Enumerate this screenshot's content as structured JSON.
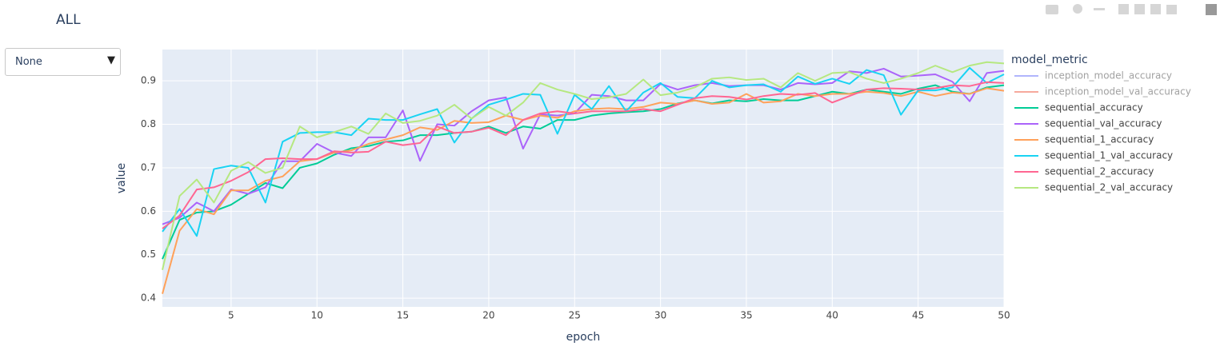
{
  "chart_data": {
    "type": "line",
    "title": "ALL",
    "dropdown": "None",
    "xlabel": "epoch",
    "ylabel": "value",
    "legend_title": "model_metric",
    "x": [
      1,
      2,
      3,
      4,
      5,
      6,
      7,
      8,
      9,
      10,
      11,
      12,
      13,
      14,
      15,
      16,
      17,
      18,
      19,
      20,
      21,
      22,
      23,
      24,
      25,
      26,
      27,
      28,
      29,
      30,
      31,
      32,
      33,
      34,
      35,
      36,
      37,
      38,
      39,
      40,
      41,
      42,
      43,
      44,
      45,
      46,
      47,
      48,
      49,
      50
    ],
    "xlim": [
      1,
      50
    ],
    "xticks": [
      5,
      10,
      15,
      20,
      25,
      30,
      35,
      40,
      45,
      50
    ],
    "ylim": [
      0.38,
      0.972
    ],
    "yticks": [
      0.4,
      0.5,
      0.6,
      0.7,
      0.8,
      0.9
    ],
    "grid": true,
    "series": [
      {
        "name": "inception_model_accuracy",
        "color": "#636efa",
        "visible": "legendonly"
      },
      {
        "name": "inception_model_val_accuracy",
        "color": "#EF553B",
        "visible": "legendonly"
      },
      {
        "name": "sequential_accuracy",
        "color": "#00cc96",
        "values": [
          0.49,
          0.58,
          0.597,
          0.6,
          0.615,
          0.64,
          0.665,
          0.653,
          0.7,
          0.71,
          0.73,
          0.745,
          0.75,
          0.76,
          0.763,
          0.775,
          0.775,
          0.78,
          0.783,
          0.795,
          0.78,
          0.795,
          0.79,
          0.81,
          0.81,
          0.82,
          0.825,
          0.828,
          0.83,
          0.835,
          0.848,
          0.855,
          0.848,
          0.855,
          0.853,
          0.858,
          0.855,
          0.855,
          0.865,
          0.875,
          0.87,
          0.88,
          0.875,
          0.87,
          0.882,
          0.89,
          0.875,
          0.87,
          0.885,
          0.89
        ]
      },
      {
        "name": "sequential_val_accuracy",
        "color": "#ab63fa",
        "values": [
          0.57,
          0.585,
          0.62,
          0.6,
          0.65,
          0.64,
          0.655,
          0.715,
          0.715,
          0.755,
          0.735,
          0.727,
          0.77,
          0.77,
          0.832,
          0.716,
          0.8,
          0.797,
          0.83,
          0.855,
          0.862,
          0.744,
          0.823,
          0.82,
          0.825,
          0.868,
          0.865,
          0.855,
          0.855,
          0.893,
          0.88,
          0.89,
          0.895,
          0.888,
          0.89,
          0.89,
          0.88,
          0.895,
          0.892,
          0.895,
          0.922,
          0.918,
          0.928,
          0.91,
          0.912,
          0.915,
          0.898,
          0.853,
          0.918,
          0.923
        ]
      },
      {
        "name": "sequential_1_accuracy",
        "color": "#FFA15A",
        "values": [
          0.41,
          0.555,
          0.605,
          0.593,
          0.648,
          0.648,
          0.67,
          0.68,
          0.715,
          0.72,
          0.735,
          0.74,
          0.755,
          0.765,
          0.775,
          0.793,
          0.787,
          0.808,
          0.803,
          0.805,
          0.82,
          0.81,
          0.82,
          0.815,
          0.83,
          0.835,
          0.837,
          0.835,
          0.84,
          0.85,
          0.847,
          0.855,
          0.847,
          0.85,
          0.87,
          0.85,
          0.853,
          0.87,
          0.865,
          0.87,
          0.87,
          0.875,
          0.872,
          0.865,
          0.875,
          0.865,
          0.873,
          0.87,
          0.883,
          0.877
        ]
      },
      {
        "name": "sequential_1_val_accuracy",
        "color": "#19d3f3",
        "values": [
          0.553,
          0.605,
          0.543,
          0.697,
          0.705,
          0.7,
          0.62,
          0.76,
          0.78,
          0.782,
          0.782,
          0.775,
          0.813,
          0.81,
          0.81,
          0.823,
          0.835,
          0.758,
          0.813,
          0.845,
          0.857,
          0.87,
          0.868,
          0.778,
          0.868,
          0.835,
          0.888,
          0.83,
          0.873,
          0.895,
          0.863,
          0.86,
          0.9,
          0.885,
          0.89,
          0.892,
          0.875,
          0.91,
          0.893,
          0.905,
          0.893,
          0.925,
          0.913,
          0.822,
          0.878,
          0.878,
          0.885,
          0.93,
          0.895,
          0.915
        ]
      },
      {
        "name": "sequential_2_accuracy",
        "color": "#FF6692",
        "values": [
          0.56,
          0.59,
          0.65,
          0.655,
          0.67,
          0.69,
          0.72,
          0.722,
          0.72,
          0.72,
          0.738,
          0.735,
          0.737,
          0.76,
          0.752,
          0.757,
          0.795,
          0.78,
          0.783,
          0.792,
          0.775,
          0.81,
          0.825,
          0.83,
          0.825,
          0.83,
          0.83,
          0.83,
          0.835,
          0.83,
          0.845,
          0.86,
          0.865,
          0.863,
          0.857,
          0.865,
          0.87,
          0.868,
          0.872,
          0.85,
          0.865,
          0.88,
          0.883,
          0.882,
          0.88,
          0.883,
          0.89,
          0.888,
          0.897,
          0.895
        ]
      },
      {
        "name": "sequential_2_val_accuracy",
        "color": "#B6E880",
        "values": [
          0.465,
          0.635,
          0.673,
          0.62,
          0.693,
          0.713,
          0.688,
          0.7,
          0.795,
          0.77,
          0.782,
          0.795,
          0.778,
          0.825,
          0.803,
          0.808,
          0.82,
          0.845,
          0.813,
          0.84,
          0.82,
          0.85,
          0.895,
          0.88,
          0.87,
          0.858,
          0.862,
          0.87,
          0.903,
          0.867,
          0.873,
          0.885,
          0.905,
          0.908,
          0.902,
          0.905,
          0.885,
          0.918,
          0.9,
          0.918,
          0.92,
          0.905,
          0.895,
          0.905,
          0.918,
          0.935,
          0.92,
          0.935,
          0.943,
          0.94
        ]
      }
    ]
  }
}
